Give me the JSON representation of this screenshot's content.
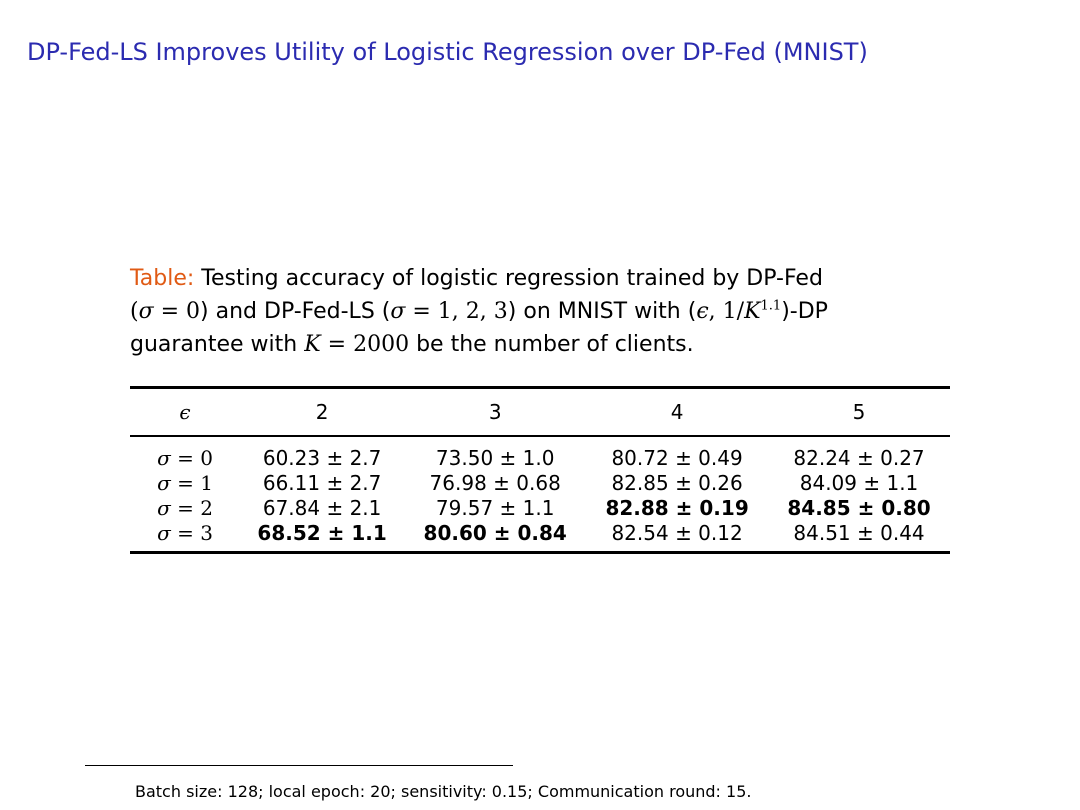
{
  "slide": {
    "title": "DP-Fed-LS Improves Utility of Logistic Regression over DP-Fed (MNIST)"
  },
  "caption": {
    "label": "Table:",
    "text_1": " Testing accuracy of logistic regression trained by DP-Fed",
    "open_paren": "(",
    "sigma_sym": "σ",
    "eq_zero": " = 0",
    "text_2": ") and DP-Fed-LS (",
    "eq_values": " = 1, 2, 3",
    "text_3": ") on MNIST with (",
    "eps_sym": "ϵ",
    "guarantee_mid": ", 1/",
    "k_sym": "K",
    "k_exp": "1.1",
    "text_4": ")-DP",
    "text_5": "guarantee with ",
    "k_eq": " = 2000",
    "text_6": " be the number of clients."
  },
  "table": {
    "corner_header": "ϵ",
    "columns": [
      "2",
      "3",
      "4",
      "5"
    ],
    "rows": [
      {
        "sigma": "σ",
        "sigma_val": " = 0",
        "cells": [
          {
            "value": "60.23 ± 2.7",
            "bold": false
          },
          {
            "value": "73.50 ± 1.0",
            "bold": false
          },
          {
            "value": "80.72 ± 0.49",
            "bold": false
          },
          {
            "value": "82.24 ± 0.27",
            "bold": false
          }
        ]
      },
      {
        "sigma": "σ",
        "sigma_val": " = 1",
        "cells": [
          {
            "value": "66.11 ± 2.7",
            "bold": false
          },
          {
            "value": "76.98 ± 0.68",
            "bold": false
          },
          {
            "value": "82.85 ± 0.26",
            "bold": false
          },
          {
            "value": "84.09 ± 1.1",
            "bold": false
          }
        ]
      },
      {
        "sigma": "σ",
        "sigma_val": " = 2",
        "cells": [
          {
            "value": "67.84 ± 2.1",
            "bold": false
          },
          {
            "value": "79.57 ± 1.1",
            "bold": false
          },
          {
            "value": "82.88 ± 0.19",
            "bold": true
          },
          {
            "value": "84.85 ± 0.80",
            "bold": true
          }
        ]
      },
      {
        "sigma": "σ",
        "sigma_val": " = 3",
        "cells": [
          {
            "value": "68.52 ± 1.1",
            "bold": true
          },
          {
            "value": "80.60 ± 0.84",
            "bold": true
          },
          {
            "value": "82.54 ± 0.12",
            "bold": false
          },
          {
            "value": "84.51 ± 0.44",
            "bold": false
          }
        ]
      }
    ]
  },
  "footnote": {
    "text": "Batch size: 128; local epoch: 20; sensitivity: 0.15; Communication round: 15."
  },
  "colors": {
    "title": "#2b2bb0",
    "caption_label": "#e05a14"
  }
}
